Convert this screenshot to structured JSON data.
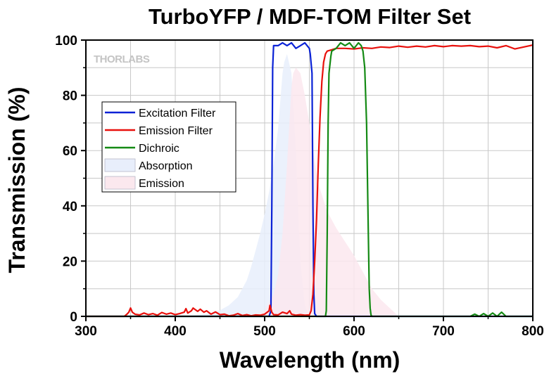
{
  "chart_data": {
    "type": "line",
    "title": "TurboYFP / MDF-TOM Filter Set",
    "xlabel": "Wavelength (nm)",
    "ylabel": "Transmission (%)",
    "xlim": [
      300,
      800
    ],
    "ylim": [
      0,
      100
    ],
    "x_ticks": [
      300,
      400,
      500,
      600,
      700,
      800
    ],
    "y_ticks": [
      0,
      20,
      40,
      60,
      80,
      100
    ],
    "grid": true,
    "legend_position": "upper-left",
    "watermark": "THORLABS",
    "colors": {
      "excitation": "#0a22d6",
      "emission_filter": "#e8100c",
      "dichroic": "#148a14",
      "absorption_fill": "#e8eefb",
      "emission_fill": "#fbe8ee",
      "grid": "#c8c8c8"
    },
    "series": [
      {
        "name": "Excitation Filter",
        "kind": "line",
        "color": "#0a22d6",
        "x": [
          300,
          505,
          507,
          508,
          509,
          510,
          515,
          520,
          525,
          530,
          535,
          540,
          545,
          550,
          551,
          553,
          554,
          555,
          556,
          558,
          800
        ],
        "y": [
          0,
          0,
          2,
          40,
          90,
          98,
          98,
          99,
          98,
          99,
          97,
          98,
          99,
          97,
          95,
          88,
          40,
          8,
          1,
          0,
          0
        ]
      },
      {
        "name": "Emission Filter",
        "kind": "line",
        "color": "#e8100c",
        "x": [
          300,
          343,
          346,
          348,
          350,
          352,
          355,
          360,
          365,
          370,
          375,
          380,
          385,
          390,
          395,
          400,
          405,
          410,
          412,
          414,
          418,
          420,
          425,
          428,
          432,
          435,
          440,
          445,
          450,
          455,
          460,
          465,
          470,
          475,
          480,
          485,
          490,
          495,
          500,
          505,
          506,
          508,
          510,
          515,
          520,
          525,
          528,
          530,
          535,
          540,
          545,
          550,
          552,
          554,
          556,
          558,
          560,
          562,
          564,
          566,
          568,
          570,
          575,
          580,
          590,
          600,
          610,
          620,
          630,
          640,
          650,
          660,
          670,
          680,
          690,
          700,
          710,
          720,
          730,
          740,
          750,
          760,
          770,
          780,
          790,
          800
        ],
        "y": [
          0,
          0,
          0.8,
          1.5,
          3,
          1.5,
          0.8,
          0.5,
          1.2,
          0.6,
          1,
          0.4,
          1.4,
          0.8,
          1.2,
          0.6,
          1,
          1.5,
          2.8,
          1.2,
          2,
          3,
          1.8,
          2.6,
          1.5,
          2,
          0.8,
          1.6,
          0.6,
          0.8,
          0.2,
          0.4,
          1,
          0.3,
          0.6,
          0.2,
          0.5,
          0.4,
          0.8,
          2,
          4,
          1.5,
          0.6,
          0.5,
          1.5,
          1,
          2,
          0.8,
          0.4,
          0.6,
          0.4,
          0.5,
          2,
          8,
          20,
          35,
          55,
          72,
          85,
          92,
          95,
          96,
          96.5,
          97,
          97,
          96.8,
          97.2,
          97,
          97.5,
          97.3,
          97.8,
          97.4,
          97.8,
          97.5,
          98,
          97.6,
          98,
          97.8,
          98,
          97.6,
          97.8,
          97.2,
          98,
          96.8,
          97.5,
          98.2
        ]
      },
      {
        "name": "Dichroic",
        "kind": "line",
        "color": "#148a14",
        "x": [
          300,
          568,
          569,
          570,
          571,
          572,
          574,
          575,
          580,
          585,
          590,
          595,
          600,
          605,
          608,
          610,
          612,
          614,
          616,
          617,
          618,
          619,
          620,
          730,
          735,
          740,
          745,
          750,
          755,
          760,
          765,
          770,
          800
        ],
        "y": [
          0,
          0,
          2,
          30,
          70,
          88,
          94,
          96,
          97,
          99,
          98,
          99,
          97,
          99,
          98,
          96,
          90,
          70,
          30,
          10,
          3,
          0.5,
          0,
          0,
          0.8,
          0,
          1,
          0,
          1.2,
          0,
          1.5,
          0,
          0
        ]
      },
      {
        "name": "Absorption",
        "kind": "area",
        "color": "#e8eefb",
        "x": [
          400,
          420,
          440,
          450,
          460,
          470,
          480,
          485,
          490,
          495,
          500,
          505,
          510,
          515,
          518,
          520,
          522,
          525,
          530,
          535,
          538,
          540,
          545,
          550
        ],
        "y": [
          0,
          0.3,
          1.2,
          2.2,
          4,
          7,
          13,
          18,
          24,
          30,
          37,
          45,
          55,
          68,
          80,
          88,
          92,
          95,
          88,
          60,
          35,
          20,
          4,
          0
        ]
      },
      {
        "name": "Emission",
        "kind": "area",
        "color": "#fbe8ee",
        "x": [
          490,
          500,
          510,
          515,
          520,
          525,
          528,
          530,
          532,
          535,
          540,
          545,
          550,
          555,
          560,
          570,
          580,
          590,
          600,
          610,
          620,
          630,
          640,
          650
        ],
        "y": [
          0,
          2,
          8,
          15,
          30,
          55,
          72,
          83,
          88,
          90,
          88,
          80,
          70,
          58,
          48,
          38,
          32,
          27,
          22,
          16,
          10,
          6,
          3,
          0
        ]
      }
    ]
  }
}
